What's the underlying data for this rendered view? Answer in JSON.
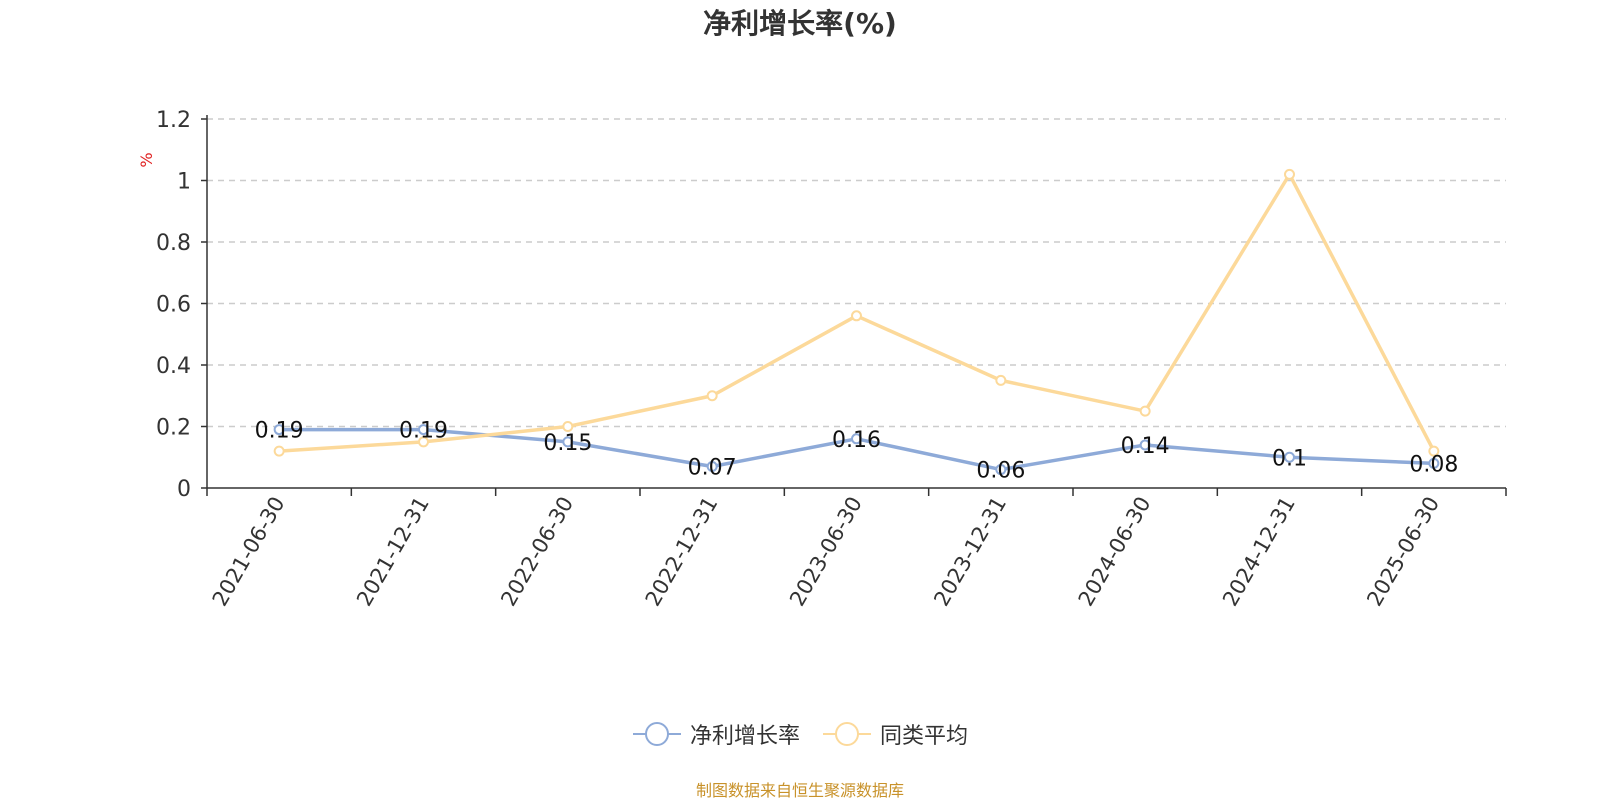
{
  "chart_data": {
    "type": "line",
    "title": "净利增长率(%)",
    "ylabel": "%",
    "categories": [
      "2021-06-30",
      "2021-12-31",
      "2022-06-30",
      "2022-12-31",
      "2023-06-30",
      "2023-12-31",
      "2024-06-30",
      "2024-12-31",
      "2025-06-30"
    ],
    "ylim": [
      0,
      1.2
    ],
    "yticks": [
      "0",
      "0.2",
      "0.4",
      "0.6",
      "0.8",
      "1",
      "1.2"
    ],
    "grid": true,
    "legend_position": "bottom-center",
    "series": [
      {
        "name": "净利增长率",
        "color": "#8eaad8",
        "values": [
          0.19,
          0.19,
          0.15,
          0.07,
          0.16,
          0.06,
          0.14,
          0.1,
          0.08
        ],
        "labels": [
          "0.19",
          "0.19",
          "0.15",
          "0.07",
          "0.16",
          "0.06",
          "0.14",
          "0.1",
          "0.08"
        ]
      },
      {
        "name": "同类平均",
        "color": "#fcd99a",
        "values": [
          0.12,
          0.15,
          0.2,
          0.3,
          0.56,
          0.35,
          0.25,
          1.02,
          0.12
        ]
      }
    ]
  },
  "source_note": "制图数据来自恒生聚源数据库"
}
